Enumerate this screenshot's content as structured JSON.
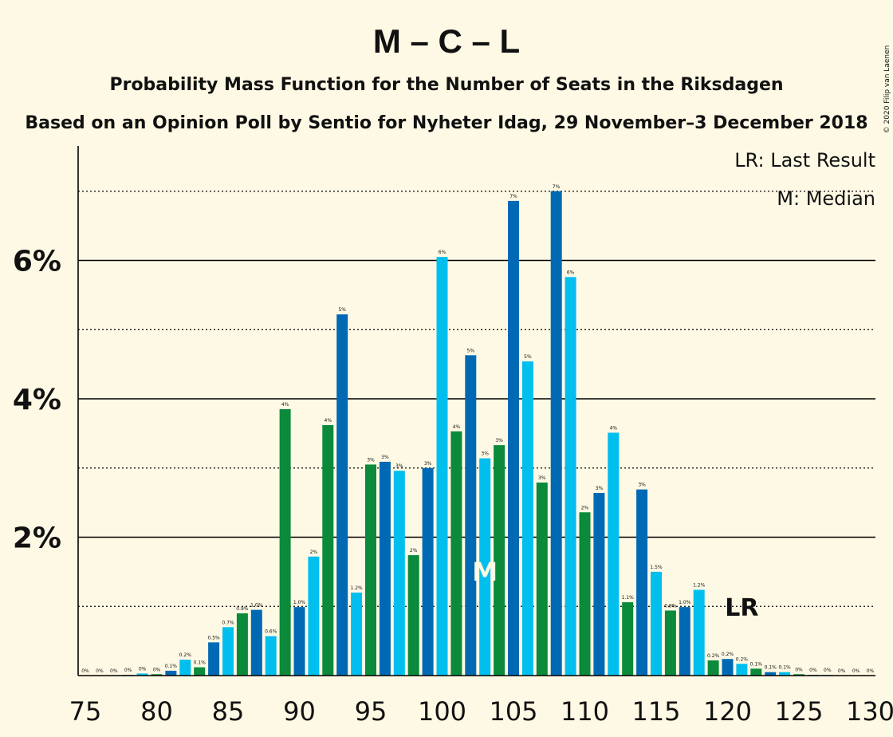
{
  "colors": {
    "background": "#fef9e4",
    "dark_blue": "#0069b4",
    "light_blue": "#00bfef",
    "green": "#0a8a3a",
    "text": "#111111"
  },
  "credit": "© 2020 Filip van Laenen",
  "chart_data": {
    "type": "bar",
    "title": "M – C – L",
    "subtitle": "Probability Mass Function for the Number of Seats in the Riksdagen",
    "subtitle2": "Based on an Opinion Poll by Sentio for Nyheter Idag, 29 November–3 December 2018",
    "legend": {
      "placement": "top-right",
      "lr": "LR: Last Result",
      "m": "M: Median"
    },
    "x": [
      75,
      76,
      77,
      78,
      79,
      80,
      81,
      82,
      83,
      84,
      85,
      86,
      87,
      88,
      89,
      90,
      91,
      92,
      93,
      94,
      95,
      96,
      97,
      98,
      99,
      100,
      101,
      102,
      103,
      104,
      105,
      106,
      107,
      108,
      109,
      110,
      111,
      112,
      113,
      114,
      115,
      116,
      117,
      118,
      119,
      120,
      121,
      122,
      123,
      124,
      125,
      126,
      127,
      128,
      129,
      130
    ],
    "values": [
      0,
      0,
      0,
      0.01,
      0.03,
      0.02,
      0.07,
      0.23,
      0.12,
      0.48,
      0.7,
      0.9,
      0.95,
      0.57,
      3.85,
      0.99,
      1.72,
      3.62,
      5.22,
      1.2,
      3.05,
      3.09,
      2.96,
      1.74,
      3.0,
      6.05,
      3.53,
      4.63,
      3.14,
      3.33,
      6.86,
      4.54,
      2.79,
      7.0,
      5.76,
      2.36,
      2.64,
      3.51,
      1.06,
      2.69,
      1.5,
      0.94,
      0.99,
      1.24,
      0.22,
      0.24,
      0.17,
      0.1,
      0.05,
      0.05,
      0.02,
      0.01,
      0.01,
      0,
      0,
      0
    ],
    "labels": [
      "0%",
      "0%",
      "0%",
      "0%",
      "0%",
      "0%",
      "0.1%",
      "0.2%",
      "0.1%",
      "0.5%",
      "0.7%",
      "0.9%",
      "1.0%",
      "0.6%",
      "4%",
      "1.0%",
      "2%",
      "4%",
      "5%",
      "1.2%",
      "3%",
      "3%",
      "3%",
      "2%",
      "3%",
      "6%",
      "4%",
      "5%",
      "3%",
      "3%",
      "7%",
      "5%",
      "3%",
      "7%",
      "6%",
      "2%",
      "3%",
      "4%",
      "1.1%",
      "3%",
      "1.5%",
      "0.9%",
      "1.0%",
      "1.2%",
      "0.2%",
      "0.2%",
      "0.2%",
      "0.1%",
      "0.1%",
      "0.1%",
      "0%",
      "0%",
      "0%",
      "0%",
      "0%",
      "0%"
    ],
    "color_cycle": [
      "dark_blue",
      "light_blue",
      "green"
    ],
    "x_ticks": [
      "75",
      "80",
      "85",
      "90",
      "95",
      "100",
      "105",
      "110",
      "115",
      "120",
      "125",
      "130"
    ],
    "x_tick_values": [
      75,
      80,
      85,
      90,
      95,
      100,
      105,
      110,
      115,
      120,
      125,
      130
    ],
    "y_ticks": [
      "2%",
      "4%",
      "6%"
    ],
    "y_tick_values": [
      2,
      4,
      6
    ],
    "y_dotted_values": [
      1,
      3,
      5,
      7
    ],
    "ylim": [
      0,
      7.5
    ],
    "xlim": [
      74.5,
      130.5
    ],
    "median_seat": 103,
    "median_label": "M",
    "last_result_seat": 121,
    "last_result_label": "LR"
  }
}
